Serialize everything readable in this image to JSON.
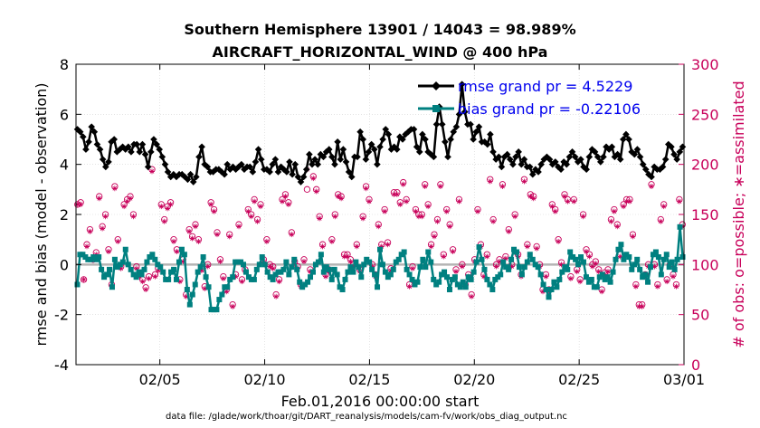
{
  "chart_data": {
    "type": "line",
    "title": "Southern Hemisphere 13901 / 14043 = 98.989%",
    "subtitle": "AIRCRAFT_HORIZONTAL_WIND @ 400 hPa",
    "xlabel": "Feb.01,2016 00:00:00 start",
    "ylabel": "rmse and bias (model - observation)",
    "ylabel_right": "# of obs: o=possible; ∗=assimilated",
    "footer": "data file: /glade/work/thoar/git/DART_reanalysis/models/cam-fv/work/obs_diag_output.nc",
    "xlim": [
      1,
      30
    ],
    "ylim": [
      -4,
      8
    ],
    "ylim_right": [
      0,
      300
    ],
    "x_tick_positions": [
      5,
      10,
      15,
      20,
      25,
      30
    ],
    "x_ticks": [
      "02/05",
      "02/10",
      "02/15",
      "02/20",
      "02/25",
      "03/01"
    ],
    "y_ticks": [
      "8",
      "6",
      "4",
      "2",
      "0",
      "-2",
      "-4"
    ],
    "y_ticks_right": [
      "300",
      "250",
      "200",
      "150",
      "100",
      "50",
      "0"
    ],
    "legend": [
      "rmse grand pr = 4.5229",
      "bias grand pr = -0.22106"
    ],
    "colors": {
      "rmse": "#000000",
      "bias": "#008080",
      "obs": "#c8005a",
      "zero": "#b4b4b4"
    },
    "rmse": [
      5.4,
      5.3,
      5.1,
      4.6,
      4.9,
      5.5,
      5.3,
      4.8,
      4.6,
      4.2,
      3.9,
      4.1,
      4.9,
      5.0,
      4.5,
      4.6,
      4.7,
      4.6,
      4.7,
      4.5,
      4.8,
      4.8,
      4.5,
      4.8,
      4.4,
      3.9,
      4.5,
      5.0,
      4.8,
      4.6,
      4.3,
      4.0,
      3.7,
      3.5,
      3.6,
      3.5,
      3.6,
      3.6,
      3.5,
      3.4,
      3.6,
      3.3,
      3.5,
      4.3,
      4.7,
      4.0,
      3.9,
      3.7,
      3.7,
      3.8,
      3.8,
      3.7,
      3.6,
      4.0,
      3.8,
      3.9,
      3.8,
      3.9,
      4.0,
      3.8,
      3.9,
      3.9,
      3.7,
      4.1,
      4.6,
      4.2,
      3.8,
      3.8,
      3.7,
      4.0,
      4.2,
      3.7,
      3.9,
      3.8,
      3.7,
      4.1,
      3.6,
      4.0,
      3.5,
      3.3,
      3.5,
      3.8,
      4.4,
      4.0,
      4.2,
      4.0,
      4.4,
      4.3,
      4.5,
      4.6,
      4.3,
      4.0,
      4.9,
      4.2,
      4.6,
      4.1,
      3.7,
      3.5,
      4.3,
      4.3,
      5.3,
      5.0,
      4.2,
      4.5,
      4.8,
      4.6,
      4.0,
      4.7,
      5.0,
      5.4,
      5.2,
      4.6,
      4.7,
      4.6,
      5.1,
      5.0,
      5.2,
      5.3,
      5.4,
      5.4,
      4.7,
      4.5,
      5.2,
      5.0,
      4.5,
      4.4,
      4.3,
      5.6,
      6.3,
      5.6,
      4.9,
      4.3,
      5.0,
      5.3,
      5.5,
      6.0,
      7.2,
      6.1,
      5.6,
      5.6,
      5.0,
      5.3,
      5.5,
      4.9,
      4.9,
      4.8,
      5.2,
      4.5,
      4.2,
      4.3,
      3.9,
      4.3,
      4.4,
      4.2,
      4.0,
      4.3,
      4.5,
      4.0,
      4.2,
      3.9,
      3.9,
      3.6,
      3.8,
      3.7,
      4.0,
      4.2,
      4.3,
      4.2,
      4.0,
      4.1,
      3.9,
      3.8,
      4.1,
      4.0,
      4.3,
      4.5,
      4.3,
      4.1,
      4.2,
      3.9,
      3.8,
      4.3,
      4.6,
      4.5,
      4.3,
      4.1,
      4.3,
      4.7,
      4.6,
      4.7,
      4.3,
      4.4,
      4.2,
      5.0,
      5.2,
      5.0,
      4.5,
      4.4,
      4.6,
      4.3,
      4.0,
      3.8,
      3.6,
      3.5,
      3.9,
      3.8,
      3.8,
      3.9,
      4.2,
      4.8,
      4.7,
      4.4,
      4.2,
      4.5,
      4.7
    ],
    "bias": [
      -0.8,
      0.4,
      0.4,
      0.3,
      0.2,
      0.2,
      0.3,
      0.2,
      0.3,
      -0.2,
      -0.5,
      -0.4,
      -0.2,
      -0.9,
      0.2,
      -0.1,
      0.0,
      0.1,
      0.6,
      0.0,
      -0.2,
      -0.4,
      -0.5,
      -0.3,
      -0.4,
      -0.2,
      0.1,
      0.3,
      0.4,
      0.2,
      0.0,
      -0.1,
      -0.3,
      -0.6,
      -0.6,
      -0.3,
      -0.2,
      -0.6,
      0.1,
      0.6,
      0.4,
      -1.0,
      -1.6,
      -1.2,
      -0.8,
      -0.3,
      -0.1,
      0.3,
      -0.5,
      -0.9,
      -1.8,
      -1.8,
      -1.8,
      -1.4,
      -1.2,
      -0.9,
      -0.9,
      -0.6,
      -0.5,
      0.1,
      0.1,
      0.1,
      0.0,
      -0.3,
      -0.5,
      -0.6,
      -0.6,
      -0.2,
      0.0,
      0.3,
      0.0,
      -0.3,
      -0.5,
      -0.6,
      -0.4,
      -0.3,
      -0.3,
      -0.2,
      0.1,
      -0.4,
      -0.1,
      0.2,
      -0.2,
      -0.7,
      -0.9,
      -0.8,
      -0.7,
      -0.5,
      -0.3,
      0.0,
      0.1,
      0.4,
      -0.3,
      -0.1,
      -0.2,
      -0.6,
      -0.2,
      -0.4,
      -0.9,
      -1.0,
      -0.6,
      -0.3,
      -0.1,
      -0.3,
      0.1,
      -0.1,
      -0.5,
      0.0,
      0.2,
      0.1,
      -0.2,
      -0.4,
      -0.9,
      0.6,
      0.0,
      -0.3,
      -0.5,
      -0.4,
      -0.2,
      0.1,
      0.2,
      0.4,
      0.5,
      -0.2,
      -0.4,
      -0.6,
      -0.8,
      -0.7,
      -0.1,
      0.2,
      -0.1,
      0.5,
      0.1,
      -0.6,
      -0.8,
      -0.7,
      -0.4,
      -0.3,
      -0.5,
      -1.0,
      -0.6,
      -0.5,
      -0.8,
      -0.9,
      -0.7,
      -0.9,
      -0.5,
      -0.6,
      -0.3,
      0.1,
      0.7,
      0.2,
      -0.2,
      -0.6,
      -0.8,
      -1.0,
      -0.6,
      -0.5,
      -0.4,
      0.1,
      -0.1,
      -0.2,
      0.2,
      0.6,
      0.5,
      -0.1,
      -0.4,
      -0.1,
      0.1,
      0.4,
      0.2,
      0.0,
      -0.1,
      -0.4,
      -0.8,
      -1.0,
      -1.3,
      -1.0,
      -0.7,
      -0.9,
      -0.6,
      -0.3,
      -0.1,
      -0.2,
      0.5,
      0.3,
      0.2,
      0.0,
      0.3,
      0.1,
      -0.5,
      -0.7,
      -0.6,
      -0.9,
      -0.9,
      -0.5,
      -0.4,
      -0.6,
      -0.5,
      -0.7,
      -0.3,
      0.2,
      0.6,
      0.8,
      0.2,
      0.4,
      0.3,
      -0.2,
      0.0,
      0.2,
      -0.2,
      -0.5,
      -0.4,
      -0.7,
      -0.1,
      0.4,
      0.5,
      0.3,
      -0.4,
      0.2,
      0.4,
      -0.1,
      0.1,
      -0.2,
      0.2,
      1.5,
      0.3
    ],
    "obs_possible": [
      160,
      162,
      85,
      120,
      135,
      105,
      112,
      168,
      138,
      150,
      115,
      80,
      178,
      125,
      98,
      160,
      165,
      168,
      150,
      98,
      90,
      85,
      77,
      88,
      195,
      90,
      96,
      160,
      145,
      158,
      162,
      125,
      115,
      85,
      105,
      70,
      135,
      128,
      140,
      125,
      96,
      78,
      100,
      162,
      155,
      132,
      105,
      88,
      75,
      130,
      60,
      90,
      140,
      85,
      95,
      155,
      150,
      165,
      145,
      160,
      105,
      125,
      100,
      98,
      70,
      85,
      165,
      170,
      162,
      132,
      103,
      98,
      80,
      105,
      175,
      95,
      188,
      175,
      148,
      120,
      90,
      95,
      125,
      150,
      170,
      168,
      110,
      110,
      105,
      100,
      120,
      95,
      148,
      178,
      165,
      100,
      90,
      140,
      120,
      155,
      122,
      96,
      172,
      172,
      162,
      182,
      165,
      80,
      98,
      155,
      150,
      150,
      180,
      160,
      120,
      130,
      145,
      180,
      110,
      155,
      140,
      115,
      95,
      165,
      100,
      80,
      90,
      70,
      105,
      155,
      120,
      90,
      110,
      185,
      145,
      100,
      105,
      180,
      108,
      135,
      100,
      150,
      110,
      90,
      185,
      120,
      170,
      168,
      118,
      100,
      75,
      90,
      75,
      160,
      155,
      125,
      102,
      170,
      165,
      88,
      165,
      95,
      85,
      150,
      115,
      110,
      100,
      103,
      95,
      75,
      92,
      95,
      145,
      155,
      140,
      110,
      160,
      165,
      165,
      130,
      80,
      60,
      60,
      90,
      100,
      180,
      100,
      80,
      145,
      160,
      85,
      100,
      90,
      80,
      165,
      140
    ],
    "obs_assimilated": [
      160,
      160,
      85,
      118,
      133,
      105,
      110,
      166,
      136,
      148,
      113,
      78,
      176,
      123,
      96,
      158,
      163,
      166,
      148,
      96,
      88,
      83,
      75,
      86,
      193,
      88,
      94,
      158,
      143,
      156,
      160,
      123,
      113,
      83,
      103,
      68,
      133,
      126,
      138,
      123,
      94,
      76,
      98,
      160,
      153,
      130,
      103,
      86,
      73,
      128,
      58,
      88,
      138,
      83,
      93,
      153,
      148,
      163,
      143,
      158,
      103,
      123,
      98,
      96,
      68,
      83,
      163,
      168,
      160,
      130,
      101,
      96,
      78,
      103,
      195,
      93,
      186,
      173,
      146,
      118,
      88,
      93,
      123,
      148,
      168,
      166,
      108,
      108,
      103,
      98,
      118,
      93,
      146,
      176,
      163,
      98,
      88,
      138,
      118,
      153,
      120,
      94,
      170,
      170,
      160,
      180,
      163,
      78,
      96,
      153,
      148,
      148,
      178,
      158,
      118,
      128,
      143,
      178,
      108,
      153,
      138,
      113,
      93,
      163,
      98,
      78,
      88,
      68,
      103,
      153,
      118,
      88,
      108,
      183,
      143,
      98,
      103,
      178,
      106,
      133,
      98,
      148,
      108,
      88,
      183,
      118,
      168,
      166,
      116,
      98,
      73,
      88,
      73,
      158,
      153,
      123,
      100,
      168,
      163,
      86,
      163,
      93,
      83,
      148,
      113,
      108,
      98,
      101,
      93,
      73,
      90,
      93,
      143,
      153,
      138,
      108,
      158,
      163,
      163,
      128,
      78,
      58,
      58,
      88,
      98,
      178,
      98,
      78,
      143,
      158,
      83,
      98,
      88,
      78,
      163,
      138
    ]
  }
}
